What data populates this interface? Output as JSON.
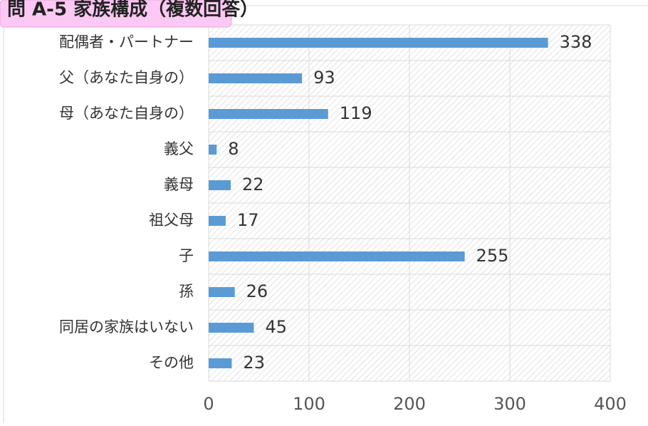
{
  "chart_data": {
    "type": "bar",
    "orientation": "horizontal",
    "title": "問 A-5 家族構成（複数回答）",
    "categories": [
      "配偶者・パートナー",
      "父（あなた自身の）",
      "母（あなた自身の）",
      "義父",
      "義母",
      "祖父母",
      "子",
      "孫",
      "同居の家族はいない",
      "その他"
    ],
    "values": [
      338,
      93,
      119,
      8,
      22,
      17,
      255,
      26,
      45,
      23
    ],
    "color": "#5b9bd5",
    "xlim": [
      0,
      400
    ],
    "xticks": [
      0,
      100,
      200,
      300,
      400
    ],
    "grid": true
  }
}
